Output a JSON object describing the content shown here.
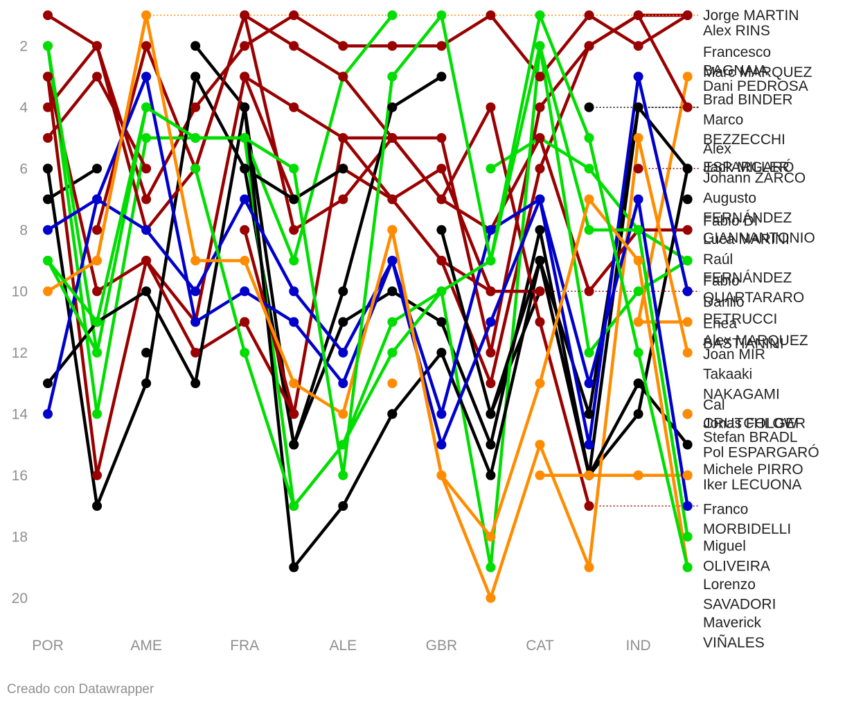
{
  "footer": "Creado con Datawrapper",
  "chart_data": {
    "type": "line",
    "title": "",
    "xlabel": "",
    "ylabel": "",
    "y_axis": "inverted (position 1 at top)",
    "ylim": [
      21,
      1
    ],
    "grid": false,
    "legend": "labels at end of lines",
    "x_tick_labels": [
      "POR",
      "AME",
      "FRA",
      "ALE",
      "GBR",
      "CAT",
      "IND"
    ],
    "y_ticks": [
      2,
      4,
      6,
      8,
      10,
      12,
      14,
      16,
      18,
      20
    ],
    "races": 14,
    "series": [
      {
        "name": "Jorge MARTIN",
        "color": "#990000",
        "values": [
          null,
          8,
          2,
          6,
          1,
          8,
          7,
          5,
          5,
          12,
          4,
          2,
          1,
          1
        ]
      },
      {
        "name": "Alex RINS",
        "color": "#ff8c00",
        "values": [
          null,
          9,
          1,
          null,
          null,
          null,
          null,
          null,
          null,
          null,
          null,
          null,
          null,
          null
        ]
      },
      {
        "name": "Francesco BAGNAIA",
        "color": "#990000",
        "values": [
          1,
          2,
          7,
          4,
          2,
          1,
          2,
          2,
          2,
          1,
          3,
          1,
          2,
          1
        ]
      },
      {
        "name": "Marc MARQUEZ",
        "color": "#ff8c00",
        "values": [
          null,
          null,
          null,
          null,
          null,
          null,
          null,
          null,
          null,
          null,
          null,
          null,
          11,
          3
        ]
      },
      {
        "name": "Dani PEDROSA",
        "color": "#000000",
        "values": [
          null,
          null,
          null,
          null,
          null,
          null,
          null,
          null,
          null,
          null,
          null,
          4,
          null,
          null
        ]
      },
      {
        "name": "Brad BINDER",
        "color": "#000000",
        "values": [
          7,
          6,
          null,
          2,
          4,
          15,
          11,
          10,
          11,
          15,
          8,
          16,
          4,
          null
        ]
      },
      {
        "name": "Marco BEZZECCHI",
        "color": "#990000",
        "values": [
          3,
          16,
          9,
          11,
          3,
          7,
          6,
          7,
          9,
          13,
          6,
          2,
          1,
          4
        ]
      },
      {
        "name": "Alex ESPARGARÓ",
        "color": "#00dd00",
        "values": [
          2,
          14,
          5,
          5,
          5,
          9,
          3,
          1,
          null,
          6,
          5,
          6,
          8,
          9
        ]
      },
      {
        "name": "Jack MILLER",
        "color": "#000000",
        "values": [
          6,
          17,
          13,
          3,
          6,
          15,
          10,
          4,
          3,
          null,
          9,
          16,
          14,
          6
        ]
      },
      {
        "name": "Johann ZARCO",
        "color": "#990000",
        "values": [
          3,
          10,
          9,
          12,
          11,
          14,
          5,
          7,
          6,
          10,
          null,
          null,
          6,
          null
        ]
      },
      {
        "name": "Augusto FERNÁNDEZ",
        "color": "#000000",
        "values": [
          6,
          null,
          12,
          null,
          6,
          7,
          6,
          null,
          null,
          14,
          10,
          null,
          null,
          7
        ]
      },
      {
        "name": "Fabio DI GIANNANTONIO",
        "color": "#990000",
        "values": [
          4,
          2,
          8,
          6,
          1,
          2,
          3,
          5,
          7,
          8,
          5,
          10,
          8,
          8
        ]
      },
      {
        "name": "Luca MARINI",
        "color": "#990000",
        "values": [
          5,
          3,
          6,
          null,
          3,
          4,
          5,
          5,
          7,
          4,
          11,
          17,
          null,
          null
        ]
      },
      {
        "name": "Raúl FERNÁNDEZ",
        "color": "#00dd00",
        "values": [
          2,
          12,
          4,
          5,
          5,
          17,
          15,
          11,
          10,
          19,
          2,
          12,
          10,
          9
        ]
      },
      {
        "name": "Fabio QUARTARARO",
        "color": "#000000",
        "values": [
          13,
          11,
          10,
          13,
          4,
          19,
          17,
          14,
          12,
          16,
          9,
          14,
          4,
          6
        ]
      },
      {
        "name": "Danilo PETRUCCI",
        "color": "#990000",
        "values": [
          null,
          null,
          null,
          null,
          11,
          null,
          null,
          null,
          null,
          null,
          null,
          null,
          null,
          10
        ]
      },
      {
        "name": "Enea BASTIANINI",
        "color": "#ff8c00",
        "values": [
          null,
          null,
          null,
          null,
          null,
          null,
          null,
          null,
          null,
          null,
          null,
          null,
          11,
          11
        ]
      },
      {
        "name": "Alex MARQUEZ",
        "color": "#990000",
        "values": [
          null,
          null,
          null,
          null,
          8,
          14,
          null,
          null,
          9,
          10,
          10,
          null,
          null,
          null
        ]
      },
      {
        "name": "Joan MIR",
        "color": "#ff8c00",
        "values": [
          null,
          null,
          null,
          null,
          null,
          null,
          null,
          8,
          16,
          20,
          15,
          19,
          5,
          12
        ]
      },
      {
        "name": "Takaaki NAKAGAMI",
        "color": "#0000cc",
        "values": [
          14,
          7,
          3,
          11,
          10,
          11,
          13,
          9,
          14,
          8,
          7,
          15,
          3,
          10
        ]
      },
      {
        "name": "Cal CRUTCHLOW",
        "color": "#ff8c00",
        "values": [
          null,
          null,
          null,
          null,
          null,
          null,
          null,
          13,
          null,
          null,
          null,
          null,
          null,
          14
        ]
      },
      {
        "name": "Jonas FOLGER",
        "color": "#000000",
        "values": [
          null,
          null,
          null,
          null,
          null,
          null,
          null,
          14,
          null,
          null,
          null,
          null,
          null,
          14
        ]
      },
      {
        "name": "Stefan BRADL",
        "color": "#ff8c00",
        "values": [
          null,
          null,
          null,
          null,
          null,
          null,
          null,
          null,
          null,
          null,
          null,
          null,
          null,
          14
        ]
      },
      {
        "name": "Pol ESPARGARÓ",
        "color": "#000000",
        "values": [
          null,
          null,
          null,
          null,
          null,
          null,
          null,
          null,
          8,
          14,
          9,
          16,
          13,
          15
        ]
      },
      {
        "name": "Michele PIRRO",
        "color": "#990000",
        "values": [
          null,
          null,
          null,
          null,
          null,
          null,
          null,
          null,
          null,
          null,
          null,
          null,
          16,
          16
        ]
      },
      {
        "name": "Iker LECUONA",
        "color": "#ff8c00",
        "values": [
          null,
          null,
          null,
          null,
          null,
          null,
          null,
          null,
          null,
          null,
          16,
          16,
          16,
          16
        ]
      },
      {
        "name": "Franco MORBIDELLI",
        "color": "#0000cc",
        "values": [
          8,
          7,
          8,
          10,
          7,
          10,
          12,
          9,
          15,
          11,
          7,
          13,
          7,
          17
        ]
      },
      {
        "name": "Miguel OLIVEIRA",
        "color": "#00dd00",
        "values": [
          9,
          12,
          null,
          6,
          12,
          17,
          15,
          12,
          10,
          9,
          2,
          8,
          8,
          18
        ]
      },
      {
        "name": "Lorenzo SAVADORI",
        "color": "#ff8c00",
        "values": [
          10,
          9,
          1,
          9,
          9,
          13,
          14,
          8,
          16,
          18,
          13,
          7,
          9,
          19
        ]
      },
      {
        "name": "Maverick VIÑALES",
        "color": "#00dd00",
        "values": [
          9,
          11,
          4,
          5,
          5,
          6,
          16,
          3,
          1,
          9,
          1,
          5,
          12,
          19
        ]
      }
    ],
    "end_labels": [
      {
        "text": "Jorge MARTIN",
        "y": 1.0
      },
      {
        "text": "Alex RINS",
        "y": 1.5
      },
      {
        "text": "Francesco",
        "y": 2.2
      },
      {
        "text": "BAGNAIA",
        "y": 2.8
      },
      {
        "text": "Marc MARQUEZ",
        "y": 2.85
      },
      {
        "text": "Dani PEDROSA",
        "y": 3.3
      },
      {
        "text": "Brad BINDER",
        "y": 3.75
      },
      {
        "text": "Marco",
        "y": 4.4
      },
      {
        "text": "BEZZECCHI",
        "y": 5.05
      },
      {
        "text": "Alex",
        "y": 5.35
      },
      {
        "text": "ESPARGARÓ",
        "y": 5.95
      },
      {
        "text": "Jack MILLER",
        "y": 5.95
      },
      {
        "text": "Johann ZARCO",
        "y": 6.3
      },
      {
        "text": "Augusto",
        "y": 6.95
      },
      {
        "text": "FERNÁNDEZ",
        "y": 7.6
      },
      {
        "text": "Fabio DI",
        "y": 7.7
      },
      {
        "text": "GIANNANTONIO",
        "y": 8.25
      },
      {
        "text": "Luca MARINI",
        "y": 8.3
      },
      {
        "text": "Raúl",
        "y": 8.95
      },
      {
        "text": "FERNÁNDEZ",
        "y": 9.55
      },
      {
        "text": "Fabio",
        "y": 9.65
      },
      {
        "text": "QUARTARARO",
        "y": 10.2
      },
      {
        "text": "Danilo",
        "y": 10.35
      },
      {
        "text": "PETRUCCI",
        "y": 10.9
      },
      {
        "text": "Enea",
        "y": 11.05
      },
      {
        "text": "Alex MARQUEZ",
        "y": 11.6
      },
      {
        "text": "BASTIANINI",
        "y": 11.7
      },
      {
        "text": "Joan MIR",
        "y": 12.05
      },
      {
        "text": "Takaaki",
        "y": 12.7
      },
      {
        "text": "NAKAGAMI",
        "y": 13.35
      },
      {
        "text": "Cal",
        "y": 13.7
      },
      {
        "text": "CRUTCHLOW",
        "y": 14.3
      },
      {
        "text": "Jonas FOLGER",
        "y": 14.3
      },
      {
        "text": "Stefan BRADL",
        "y": 14.75
      },
      {
        "text": "Pol ESPARGARÓ",
        "y": 15.25
      },
      {
        "text": "Michele PIRRO",
        "y": 15.8
      },
      {
        "text": "Iker LECUONA",
        "y": 16.3
      },
      {
        "text": "Franco",
        "y": 17.1
      },
      {
        "text": "MORBIDELLI",
        "y": 17.75
      },
      {
        "text": "Miguel",
        "y": 18.3
      },
      {
        "text": "OLIVEIRA",
        "y": 18.95
      },
      {
        "text": "Lorenzo",
        "y": 19.55
      },
      {
        "text": "SAVADORI",
        "y": 20.2
      },
      {
        "text": "Maverick",
        "y": 20.8
      },
      {
        "text": "VIÑALES",
        "y": 21.45
      }
    ]
  }
}
